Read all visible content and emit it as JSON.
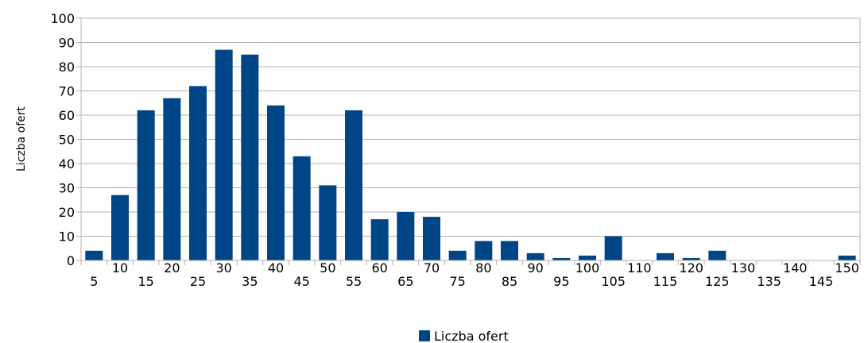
{
  "chart_data": {
    "type": "bar",
    "title": "",
    "xlabel": "",
    "ylabel": "Liczba ofert",
    "ylim": [
      0,
      100
    ],
    "y_ticks": [
      0,
      10,
      20,
      30,
      40,
      50,
      60,
      70,
      80,
      90,
      100
    ],
    "grid": true,
    "legend_position": "bottom-center",
    "categories": [
      "5",
      "10",
      "15",
      "20",
      "25",
      "30",
      "35",
      "40",
      "45",
      "50",
      "55",
      "60",
      "65",
      "70",
      "75",
      "80",
      "85",
      "90",
      "95",
      "100",
      "105",
      "110",
      "115",
      "120",
      "125",
      "130",
      "135",
      "140",
      "145",
      "150"
    ],
    "series": [
      {
        "name": "Liczba ofert",
        "color": "#004586",
        "values": [
          4,
          27,
          62,
          67,
          72,
          87,
          85,
          64,
          43,
          31,
          62,
          17,
          20,
          18,
          4,
          8,
          8,
          3,
          1,
          2,
          10,
          0,
          3,
          1,
          4,
          0,
          0,
          0,
          0,
          2
        ]
      }
    ]
  }
}
